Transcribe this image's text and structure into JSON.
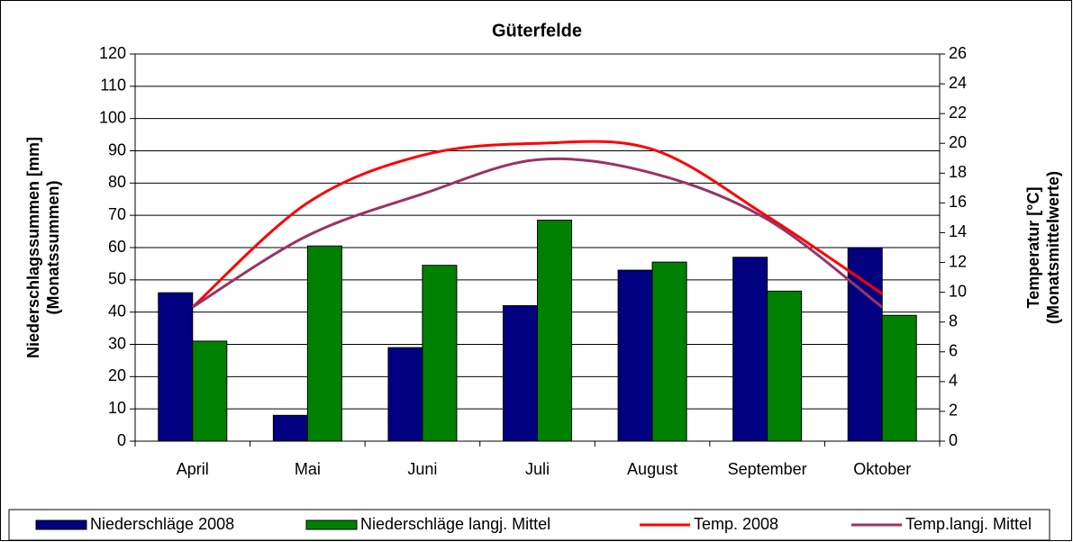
{
  "chart_data": {
    "type": "bar",
    "title": "Güterfelde",
    "ylabel": [
      "Niederschlagssummen [mm]",
      "(Monatssummen)"
    ],
    "y2label": [
      "Temperatur [°C]",
      "(Monatsmittelwerte)"
    ],
    "categories": [
      "April",
      "Mai",
      "Juni",
      "Juli",
      "August",
      "September",
      "Oktober"
    ],
    "series": [
      {
        "name": "Niederschläge 2008",
        "type": "bar",
        "color": "#000080",
        "values": [
          46,
          8,
          29,
          42,
          53,
          57,
          60
        ]
      },
      {
        "name": "Niederschläge langj. Mittel",
        "type": "bar",
        "color": "#008000",
        "values": [
          31,
          60.5,
          54.5,
          68.5,
          55.5,
          46.5,
          39
        ]
      },
      {
        "name": "Temp. 2008",
        "type": "line",
        "axis": "y2",
        "color": "#ff0000",
        "values": [
          9,
          16,
          19.2,
          20,
          19.6,
          15.1,
          9.9
        ]
      },
      {
        "name": "Temp.langj. Mittel",
        "type": "line",
        "axis": "y2",
        "color": "#993366",
        "values": [
          9,
          13.8,
          16.6,
          18.9,
          18,
          14.9,
          9
        ]
      }
    ],
    "ylim": [
      0,
      120
    ],
    "yticks": [
      0,
      10,
      20,
      30,
      40,
      50,
      60,
      70,
      80,
      90,
      100,
      110,
      120
    ],
    "y2lim": [
      0,
      26
    ],
    "y2ticks": [
      0,
      2,
      4,
      6,
      8,
      10,
      12,
      14,
      16,
      18,
      20,
      22,
      24,
      26
    ],
    "grid": true,
    "legend": "bottom"
  }
}
